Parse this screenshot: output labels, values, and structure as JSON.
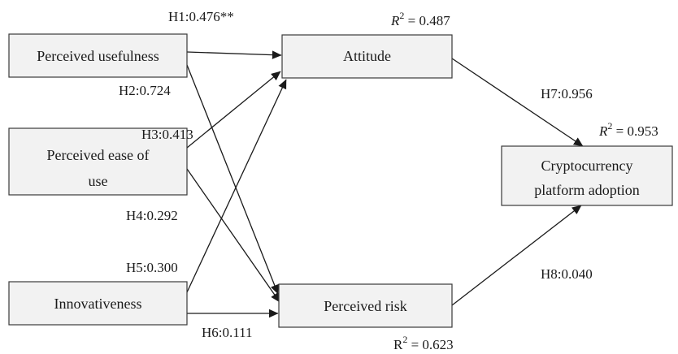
{
  "nodes": {
    "perceived_usefulness": {
      "lines": [
        "Perceived usefulness"
      ]
    },
    "perceived_ease_of_use": {
      "lines": [
        "Perceived ease of",
        "use"
      ]
    },
    "innovativeness": {
      "lines": [
        "Innovativeness"
      ]
    },
    "attitude": {
      "lines": [
        "Attitude"
      ]
    },
    "perceived_risk": {
      "lines": [
        "Perceived risk"
      ]
    },
    "adoption": {
      "lines": [
        "Cryptocurrency",
        "platform adoption"
      ]
    }
  },
  "paths": {
    "h1": {
      "from": "perceived_usefulness",
      "to": "attitude",
      "label": "H1:0.476**"
    },
    "h2": {
      "from": "perceived_usefulness",
      "to": "perceived_risk",
      "label": "H2:0.724"
    },
    "h3": {
      "from": "perceived_ease_of_use",
      "to": "attitude",
      "label": "H3:0.413"
    },
    "h4": {
      "from": "perceived_ease_of_use",
      "to": "perceived_risk",
      "label": "H4:0.292"
    },
    "h5": {
      "from": "innovativeness",
      "to": "attitude",
      "label": "H5:0.300"
    },
    "h6": {
      "from": "innovativeness",
      "to": "perceived_risk",
      "label": "H6:0.111"
    },
    "h7": {
      "from": "attitude",
      "to": "adoption",
      "label": "H7:0.956"
    },
    "h8": {
      "from": "perceived_risk",
      "to": "adoption",
      "label": "H8:0.040"
    }
  },
  "r_squared": {
    "attitude": {
      "symbol": "R",
      "sup": "2",
      "value": " = 0.487",
      "italic": true
    },
    "adoption": {
      "symbol": "R",
      "sup": "2",
      "value": " = 0.953",
      "italic": true
    },
    "perceived_risk": {
      "symbol": "R",
      "sup": "2",
      "value": " = 0.623",
      "italic": false
    }
  }
}
